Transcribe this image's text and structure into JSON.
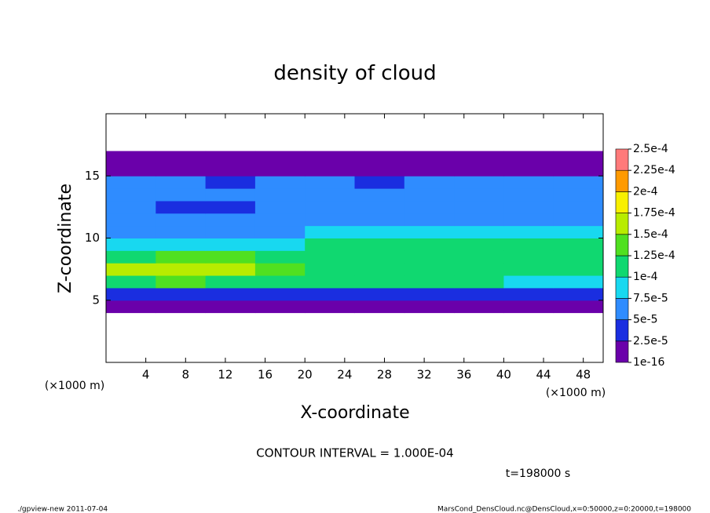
{
  "chart_data": {
    "type": "heatmap",
    "title": "density of cloud",
    "xlabel": "X-coordinate",
    "ylabel": "Z-coordinate",
    "x_unit_label": "(×1000 m)",
    "y_unit_label": "(×1000 m)",
    "annotation": "CONTOUR INTERVAL = 1.000E-04",
    "time_label": "t=198000 s",
    "footer_left": "./gpview-new  2011-07-04",
    "footer_right": "MarsCond_DensCloud.nc@DensCloud,x=0:50000,z=0:20000,t=198000",
    "xlim": [
      0,
      50
    ],
    "ylim": [
      0,
      20
    ],
    "xticks": [
      4,
      8,
      12,
      16,
      20,
      24,
      28,
      32,
      36,
      40,
      44,
      48
    ],
    "yticks": [
      5,
      10,
      15
    ],
    "x": [
      2.5,
      7.5,
      12.5,
      17.5,
      22.5,
      27.5,
      32.5,
      37.5,
      42.5,
      47.5
    ],
    "y": [
      4.5,
      5.5,
      6.5,
      7.5,
      8.5,
      9.5,
      10.5,
      11.5,
      12.5,
      13.5,
      14.5,
      15.5,
      16.5
    ],
    "values": [
      [
        1e-05,
        1e-05,
        1e-05,
        1e-05,
        1e-05,
        1e-05,
        1e-05,
        1e-05,
        1e-05,
        1e-05
      ],
      [
        4e-05,
        4e-05,
        4e-05,
        4e-05,
        4e-05,
        4e-05,
        4e-05,
        4e-05,
        3e-05,
        4e-05
      ],
      [
        0.00012,
        0.00013,
        0.00012,
        0.00011,
        0.0001,
        0.0001,
        0.0001,
        0.0001,
        9e-05,
        9e-05
      ],
      [
        0.00016,
        0.00017,
        0.00016,
        0.00014,
        0.00012,
        0.00011,
        0.00011,
        0.00011,
        0.00011,
        0.0001
      ],
      [
        0.00012,
        0.00013,
        0.00013,
        0.00012,
        0.00011,
        0.00011,
        0.00012,
        0.00011,
        0.00011,
        0.0001
      ],
      [
        8e-05,
        8e-05,
        8e-05,
        9e-05,
        0.0001,
        0.0001,
        0.00011,
        0.00011,
        0.0001,
        0.0001
      ],
      [
        7e-05,
        6e-05,
        6e-05,
        7e-05,
        8e-05,
        8e-05,
        8e-05,
        8e-05,
        8e-05,
        8e-05
      ],
      [
        6e-05,
        5e-05,
        5e-05,
        6e-05,
        7e-05,
        7e-05,
        7e-05,
        7e-05,
        6e-05,
        6e-05
      ],
      [
        6e-05,
        4e-05,
        4e-05,
        6e-05,
        6e-05,
        5e-05,
        6e-05,
        6e-05,
        5e-05,
        6e-05
      ],
      [
        7e-05,
        5e-05,
        5e-05,
        6e-05,
        7e-05,
        5e-05,
        6e-05,
        6e-05,
        6e-05,
        6e-05
      ],
      [
        5e-05,
        5e-05,
        4e-05,
        5e-05,
        5e-05,
        4e-05,
        5e-05,
        5e-05,
        5e-05,
        5e-05
      ],
      [
        2e-05,
        2e-05,
        2e-05,
        2e-05,
        2e-05,
        2e-05,
        2e-05,
        2e-05,
        2e-05,
        2e-05
      ],
      [
        5e-06,
        5e-06,
        5e-06,
        5e-06,
        5e-06,
        5e-06,
        5e-06,
        5e-06,
        5e-06,
        5e-06
      ]
    ],
    "colorbar": {
      "levels": [
        {
          "value": 1e-16,
          "label": "1e-16"
        },
        {
          "value": 2.5e-05,
          "label": "2.5e-5"
        },
        {
          "value": 5e-05,
          "label": "5e-5"
        },
        {
          "value": 7.5e-05,
          "label": "7.5e-5"
        },
        {
          "value": 0.0001,
          "label": "1e-4"
        },
        {
          "value": 0.000125,
          "label": "1.25e-4"
        },
        {
          "value": 0.00015,
          "label": "1.5e-4"
        },
        {
          "value": 0.000175,
          "label": "1.75e-4"
        },
        {
          "value": 0.0002,
          "label": "2e-4"
        },
        {
          "value": 0.000225,
          "label": "2.25e-4"
        },
        {
          "value": 0.00025,
          "label": "2.5e-4"
        }
      ],
      "colors": [
        "#6a00aa",
        "#1a2ee0",
        "#2f8cff",
        "#18d8f0",
        "#10d870",
        "#50e020",
        "#b8ec00",
        "#f8f000",
        "#ff9a00",
        "#ff7a7a"
      ]
    }
  }
}
